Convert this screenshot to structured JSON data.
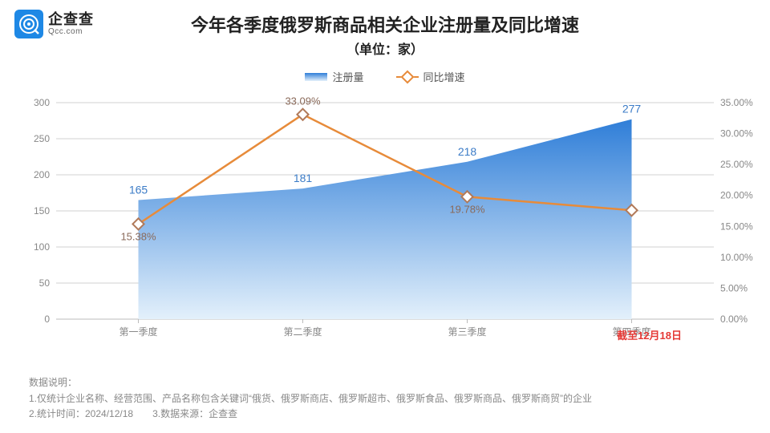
{
  "logo": {
    "cn": "企查查",
    "en": "Qcc.com"
  },
  "title": "今年各季度俄罗斯商品相关企业注册量及同比增速",
  "subtitle": "（单位：家）",
  "legend": {
    "series1": "注册量",
    "series2": "同比增速"
  },
  "chart": {
    "type": "combo-area-line",
    "categories": [
      "第一季度",
      "第二季度",
      "第三季度",
      "第四季度"
    ],
    "area": {
      "values": [
        165,
        181,
        218,
        277
      ],
      "fill_top": "#2f7ed8",
      "fill_bottom": "#e3f0fb",
      "label_color": "#3c7cc7"
    },
    "line": {
      "values_pct": [
        15.38,
        33.09,
        19.78,
        17.6
      ],
      "labels": [
        "15.38%",
        "33.09%",
        "19.78%",
        ""
      ],
      "stroke": "#e78b3a",
      "marker_border": "#b17a5a",
      "marker_fill": "#ffffff",
      "label_color": "#8a6a5a"
    },
    "y_left": {
      "min": 0,
      "max": 300,
      "step": 50,
      "ticks": [
        "0",
        "50",
        "100",
        "150",
        "200",
        "250",
        "300"
      ]
    },
    "y_right": {
      "min": 0,
      "max": 35,
      "step": 5,
      "ticks": [
        "0.00%",
        "5.00%",
        "10.00%",
        "15.00%",
        "20.00%",
        "25.00%",
        "30.00%",
        "35.00%"
      ]
    },
    "grid_color": "#d0d0d0",
    "axis_color": "#bbbbbb",
    "background": "#ffffff"
  },
  "note_red": "截至12月18日",
  "footer": {
    "l1": "数据说明：",
    "l2": "1.仅统计企业名称、经营范围、产品名称包含关键词“俄货、俄罗斯商店、俄罗斯超市、俄罗斯食品、俄罗斯商品、俄罗斯商贸”的企业",
    "l3": "2.统计时间：2024/12/18　　3.数据来源：企查查"
  }
}
